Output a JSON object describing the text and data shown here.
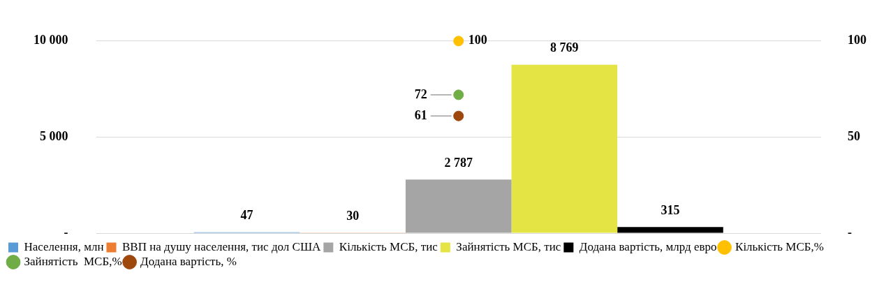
{
  "chart_data": {
    "type": "bar",
    "categories": [
      null
    ],
    "series": [
      {
        "name": "Населення, млн",
        "color": "#5b9bd5",
        "values": [
          47
        ]
      },
      {
        "name": "ВВП на душу населення, тис дол США",
        "color": "#ed7d31",
        "values": [
          30
        ]
      },
      {
        "name": "Кількість МСБ, тис",
        "color": "#a5a5a5",
        "values": [
          2787
        ],
        "value_labels": [
          "2 787"
        ]
      },
      {
        "name": "Зайнятість МСБ, тис",
        "color": "#e4e444",
        "values": [
          8769
        ],
        "value_labels": [
          "8 769"
        ]
      },
      {
        "name": "Додана вартість, млрд евро",
        "color": "#000000",
        "values": [
          315
        ]
      },
      {
        "name": "Кількість МСБ,%",
        "type": "scatter",
        "axis": "y2",
        "color": "#ffc000",
        "values": [
          100
        ]
      },
      {
        "name": "Зайнятість  МСБ,%",
        "type": "scatter",
        "axis": "y2",
        "color": "#70ad47",
        "values": [
          72
        ]
      },
      {
        "name": "Додана вартість, %",
        "type": "scatter",
        "axis": "y2",
        "color": "#9e480e",
        "values": [
          61
        ]
      }
    ],
    "ylim": [
      0,
      10000
    ],
    "yticks": [
      {
        "value": 0,
        "label": "-"
      },
      {
        "value": 5000,
        "label": "5 000"
      },
      {
        "value": 10000,
        "label": "10 000"
      }
    ],
    "y2lim": [
      0,
      100
    ],
    "y2ticks": [
      {
        "value": 0,
        "label": "-"
      },
      50,
      100
    ],
    "grid": "y",
    "legend": "bottom",
    "marker": "circle",
    "data_labels": true
  }
}
